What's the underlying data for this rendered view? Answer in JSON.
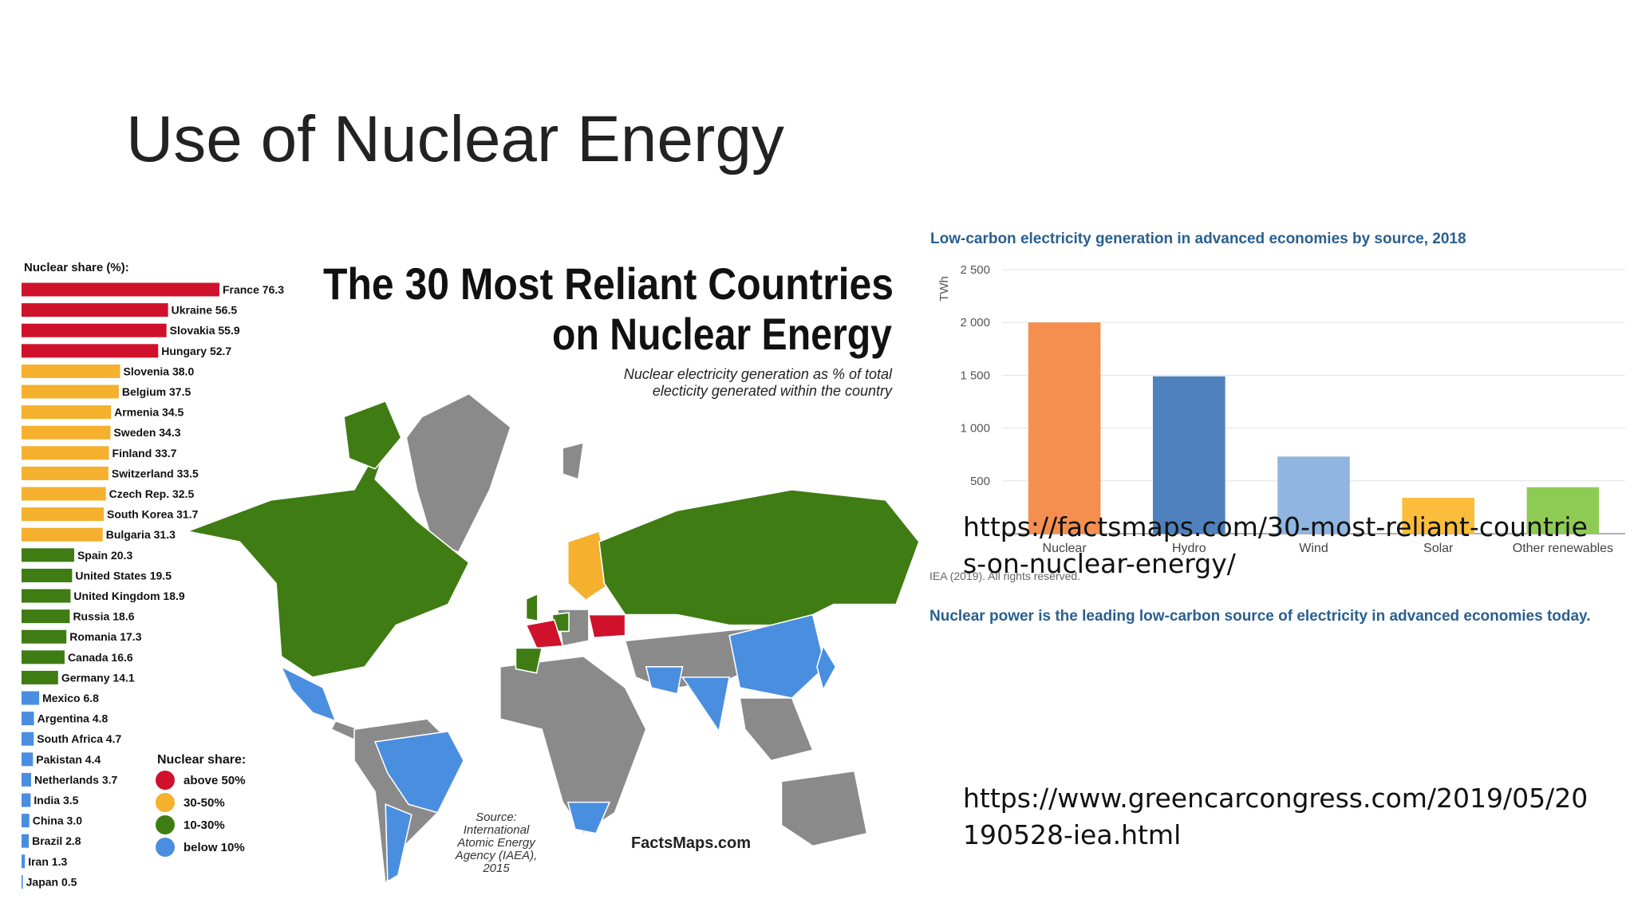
{
  "slide_title": "Use of Nuclear Energy",
  "links": [
    "https://factsmaps.com/30-most-reliant-countries-on-nuclear-energy/",
    "https://www.greencarcongress.com/2019/05/20190528-iea.html"
  ],
  "chart_data": [
    {
      "type": "hbar",
      "axis_title": "Nuclear share (%):",
      "title_lines": [
        "The 30 Most Reliant Countries",
        "on Nuclear Energy"
      ],
      "subtitle_lines": [
        "Nuclear electricity generation as % of total",
        "electicity generated within the country"
      ],
      "categories": [
        "France",
        "Ukraine",
        "Slovakia",
        "Hungary",
        "Slovenia",
        "Belgium",
        "Armenia",
        "Sweden",
        "Finland",
        "Switzerland",
        "Czech Rep.",
        "South Korea",
        "Bulgaria",
        "Spain",
        "United States",
        "United Kingdom",
        "Russia",
        "Romania",
        "Canada",
        "Germany",
        "Mexico",
        "Argentina",
        "South Africa",
        "Pakistan",
        "Netherlands",
        "India",
        "China",
        "Brazil",
        "Iran",
        "Japan"
      ],
      "values": [
        76.3,
        56.5,
        55.9,
        52.7,
        38.0,
        37.5,
        34.5,
        34.3,
        33.7,
        33.5,
        32.5,
        31.7,
        31.3,
        20.3,
        19.5,
        18.9,
        18.6,
        17.3,
        16.6,
        14.1,
        6.8,
        4.8,
        4.7,
        4.4,
        3.7,
        3.5,
        3.0,
        2.8,
        1.3,
        0.5
      ],
      "value_labels": [
        "76.3",
        "56.5",
        "55.9",
        "52.7",
        "38.0",
        "37.5",
        "34.5",
        "34.3",
        "33.7",
        "33.5",
        "32.5",
        "31.7",
        "31.3",
        "20.3",
        "19.5",
        "18.9",
        "18.6",
        "17.3",
        "16.6",
        "14.1",
        "6.8",
        "4.8",
        "4.7",
        "4.4",
        "3.7",
        "3.5",
        "3.0",
        "2.8",
        "1.3",
        "0.5"
      ],
      "colors": [
        "#d0112b",
        "#d0112b",
        "#d0112b",
        "#d0112b",
        "#f5b02e",
        "#f5b02e",
        "#f5b02e",
        "#f5b02e",
        "#f5b02e",
        "#f5b02e",
        "#f5b02e",
        "#f5b02e",
        "#f5b02e",
        "#3f7c14",
        "#3f7c14",
        "#3f7c14",
        "#3f7c14",
        "#3f7c14",
        "#3f7c14",
        "#3f7c14",
        "#4a8ee0",
        "#4a8ee0",
        "#4a8ee0",
        "#4a8ee0",
        "#4a8ee0",
        "#4a8ee0",
        "#4a8ee0",
        "#4a8ee0",
        "#4a8ee0",
        "#4a8ee0"
      ],
      "legend": {
        "title": "Nuclear share:",
        "items": [
          {
            "label": "above 50%",
            "color": "#d0112b"
          },
          {
            "label": "30-50%",
            "color": "#f5b02e"
          },
          {
            "label": "10-30%",
            "color": "#3f7c14"
          },
          {
            "label": "below 10%",
            "color": "#4a8ee0"
          }
        ]
      },
      "source_lines": [
        "Source:",
        "International",
        "Atomic Energy",
        "Agency (IAEA),",
        "2015"
      ],
      "brand": "FactsMaps.com"
    },
    {
      "type": "bar",
      "title": "Low-carbon electricity generation in advanced economies by source, 2018",
      "y_label": "TWh",
      "categories": [
        "Nuclear",
        "Hydro",
        "Wind",
        "Solar",
        "Other renewables"
      ],
      "values": [
        2000,
        1490,
        730,
        340,
        440
      ],
      "colors": [
        "#f58f4f",
        "#4e81bd",
        "#8fb5e0",
        "#fbbd3b",
        "#8ecb55"
      ],
      "ylim": [
        0,
        2500
      ],
      "yticks": [
        500,
        {
          "value": 1000,
          "label": "1 000"
        },
        {
          "value": 1500,
          "label": "1 500"
        },
        {
          "value": 2000,
          "label": "2 000"
        },
        {
          "value": 2500,
          "label": "2 500"
        }
      ],
      "grid": true,
      "source": "IEA (2019). All rights reserved.",
      "note": "Nuclear power is the leading low-carbon source of electricity in advanced economies today."
    }
  ]
}
